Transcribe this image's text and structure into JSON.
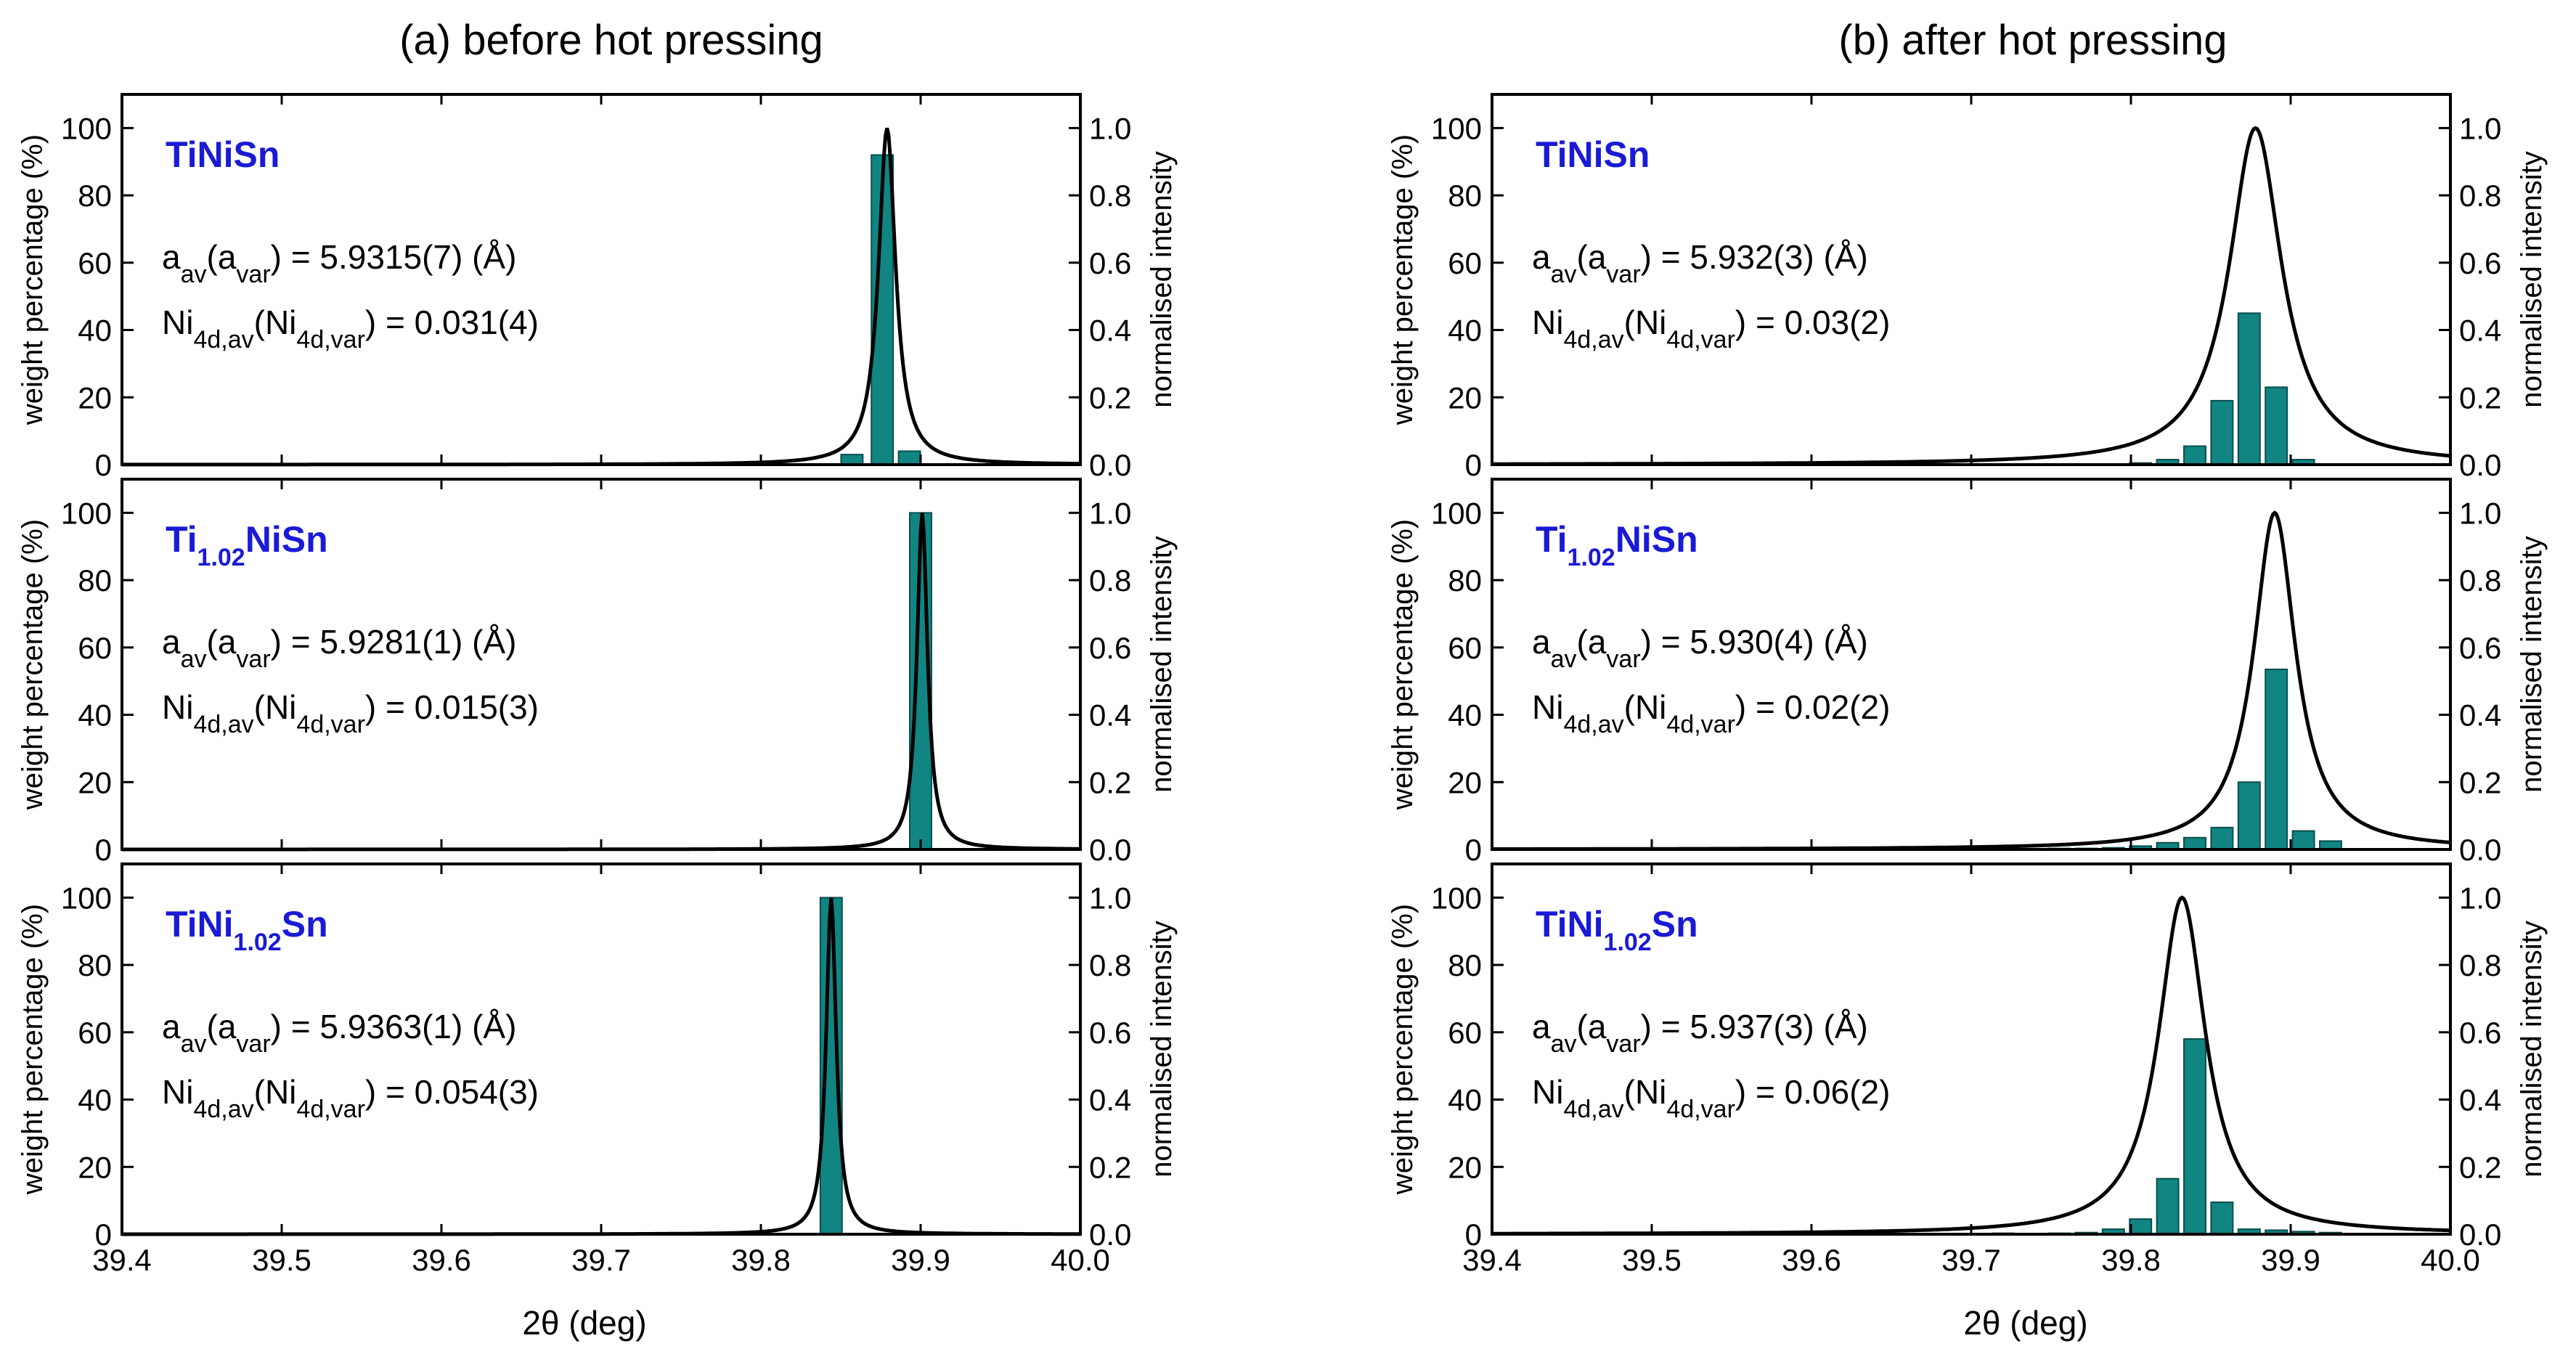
{
  "figure": {
    "xlabel": "2θ (deg)",
    "ylabel_left": "weight percentage (%)",
    "ylabel_right": "normalised intensity",
    "xlim": [
      39.4,
      40.0
    ],
    "x_ticks": [
      "39.4",
      "39.5",
      "39.6",
      "39.7",
      "39.8",
      "39.9",
      "40.0"
    ],
    "ylim_left": [
      0,
      110
    ],
    "y_ticks_left": [
      "0",
      "20",
      "40",
      "60",
      "80",
      "100"
    ],
    "ylim_right": [
      0,
      1.1
    ],
    "y_ticks_right": [
      "0.0",
      "0.2",
      "0.4",
      "0.6",
      "0.8",
      "1.0"
    ],
    "colors": {
      "bar": "#108582",
      "bar_edge": "#0a4e4c",
      "curve": "#000000",
      "label": "#1a1ad6"
    }
  },
  "chart_data": [
    {
      "type": "bar",
      "column_title": "(a) before hot pressing",
      "sample": {
        "base": "TiNiSn",
        "parts": [
          {
            "t": "TiNiSn",
            "s": false
          }
        ]
      },
      "a_text": {
        "pre": " = 5.9315(7) (Å)"
      },
      "ni_text": {
        "pre": " = 0.031(4)"
      },
      "bars": {
        "x": [
          39.857,
          39.876,
          39.893
        ],
        "values": [
          3,
          92,
          4
        ]
      },
      "curve": {
        "center": 39.879,
        "width": 0.0065,
        "peak": 1.0
      }
    },
    {
      "type": "bar",
      "column_title": "(a) before hot pressing",
      "sample": {
        "base": "Ti1.02NiSn",
        "parts": [
          {
            "t": "Ti",
            "s": false
          },
          {
            "t": "1.02",
            "s": true
          },
          {
            "t": "NiSn",
            "s": false
          }
        ]
      },
      "a_text": {
        "pre": " = 5.9281(1) (Å)"
      },
      "ni_text": {
        "pre": " = 0.015(3)"
      },
      "bars": {
        "x": [
          39.9
        ],
        "values": [
          100
        ]
      },
      "curve": {
        "center": 39.901,
        "width": 0.004,
        "peak": 1.0
      }
    },
    {
      "type": "bar",
      "column_title": "(a) before hot pressing",
      "sample": {
        "base": "TiNi1.02Sn",
        "parts": [
          {
            "t": "TiNi",
            "s": false
          },
          {
            "t": "1.02",
            "s": true
          },
          {
            "t": "Sn",
            "s": false
          }
        ]
      },
      "a_text": {
        "pre": " = 5.9363(1) (Å)"
      },
      "ni_text": {
        "pre": " = 0.054(3)"
      },
      "bars": {
        "x": [
          39.844
        ],
        "values": [
          100
        ]
      },
      "curve": {
        "center": 39.844,
        "width": 0.0038,
        "peak": 1.0
      }
    },
    {
      "type": "bar",
      "column_title": "(b) after hot pressing",
      "sample": {
        "base": "TiNiSn",
        "parts": [
          {
            "t": "TiNiSn",
            "s": false
          }
        ]
      },
      "a_text": {
        "pre": " = 5.932(3) (Å)"
      },
      "ni_text": {
        "pre": " = 0.03(2)"
      },
      "bars": {
        "x": [
          39.806,
          39.823,
          39.84,
          39.857,
          39.874,
          39.891,
          39.908
        ],
        "values": [
          0.5,
          1.5,
          5.5,
          19,
          45,
          23,
          1.5
        ]
      },
      "curve": {
        "center": 39.878,
        "width": 0.02,
        "peak": 1.0
      }
    },
    {
      "type": "bar",
      "column_title": "(b) after hot pressing",
      "sample": {
        "base": "Ti1.02NiSn",
        "parts": [
          {
            "t": "Ti",
            "s": false
          },
          {
            "t": "1.02",
            "s": true
          },
          {
            "t": "NiSn",
            "s": false
          }
        ]
      },
      "a_text": {
        "pre": " = 5.930(4) (Å)"
      },
      "ni_text": {
        "pre": " = 0.02(2)"
      },
      "bars": {
        "x": [
          39.755,
          39.772,
          39.789,
          39.806,
          39.823,
          39.84,
          39.857,
          39.874,
          39.891,
          39.908,
          39.925
        ],
        "values": [
          0.3,
          0.3,
          0.5,
          1,
          2,
          3.5,
          6.5,
          20,
          53.5,
          5.5,
          2.5
        ]
      },
      "curve": {
        "center": 39.89,
        "width": 0.016,
        "peak": 1.0
      }
    },
    {
      "type": "bar",
      "column_title": "(b) after hot pressing",
      "sample": {
        "base": "TiNi1.02Sn",
        "parts": [
          {
            "t": "TiNi",
            "s": false
          },
          {
            "t": "1.02",
            "s": true
          },
          {
            "t": "Sn",
            "s": false
          }
        ]
      },
      "a_text": {
        "pre": " = 5.937(3) (Å)"
      },
      "ni_text": {
        "pre": " = 0.06(2)"
      },
      "bars": {
        "x": [
          39.72,
          39.755,
          39.772,
          39.789,
          39.806,
          39.823,
          39.84,
          39.857,
          39.874,
          39.891,
          39.908,
          39.925
        ],
        "values": [
          0.3,
          0.3,
          0.5,
          1.5,
          4.5,
          16.5,
          58,
          9.5,
          1.5,
          1.2,
          0.8,
          0.5
        ]
      },
      "curve": {
        "center": 39.832,
        "width": 0.018,
        "peak": 1.0
      }
    }
  ]
}
